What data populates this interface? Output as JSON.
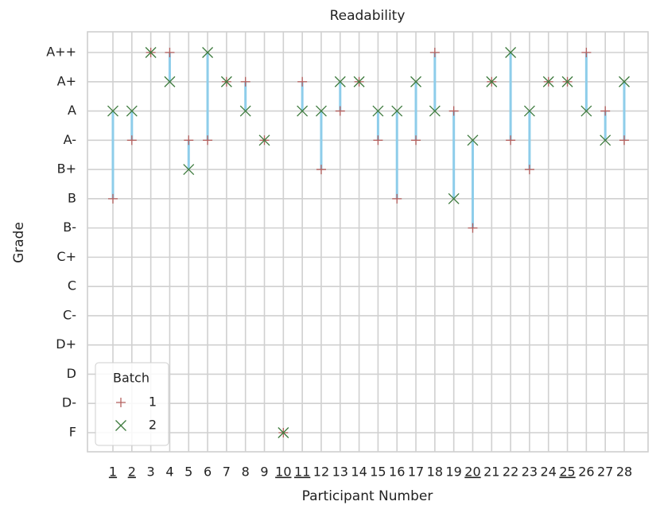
{
  "chart_data": {
    "type": "dumbbell",
    "title": "Readability",
    "x_label": "Participant Number",
    "y_label": "Grade",
    "categories": [
      "1",
      "2",
      "3",
      "4",
      "5",
      "6",
      "7",
      "8",
      "9",
      "10",
      "11",
      "12",
      "13",
      "14",
      "15",
      "16",
      "17",
      "18",
      "19",
      "20",
      "21",
      "22",
      "23",
      "24",
      "25",
      "26",
      "27",
      "28"
    ],
    "underline": [
      true,
      true,
      false,
      false,
      false,
      false,
      false,
      false,
      false,
      true,
      true,
      false,
      false,
      false,
      false,
      false,
      false,
      false,
      false,
      true,
      false,
      false,
      false,
      false,
      true,
      false,
      false,
      false
    ],
    "yticks": [
      "F",
      "D-",
      "D",
      "D+",
      "C-",
      "C",
      "C+",
      "B-",
      "B",
      "B+",
      "A-",
      "A",
      "A+",
      "A++"
    ],
    "grid": true,
    "connector_color": "#8ecdea",
    "legend_title": "Batch",
    "legend_loc": "lower left",
    "series": [
      {
        "name": "1",
        "marker": "plus",
        "color": "#b5615f",
        "values": [
          "B",
          "A-",
          "A++",
          "A++",
          "A-",
          "A-",
          "A+",
          "A+",
          "A-",
          "F",
          "A+",
          "B+",
          "A",
          "A+",
          "A-",
          "B",
          "A-",
          "A++",
          "A",
          "B-",
          "A+",
          "A-",
          "B+",
          "A+",
          "A+",
          "A++",
          "A",
          "A-"
        ]
      },
      {
        "name": "2",
        "marker": "cross",
        "color": "#3d7a3d",
        "values": [
          "A",
          "A",
          "A++",
          "A+",
          "B+",
          "A++",
          "A+",
          "A",
          "A-",
          "F",
          "A",
          "A",
          "A+",
          "A+",
          "A",
          "A",
          "A+",
          "A",
          "B",
          "A-",
          "A+",
          "A++",
          "A",
          "A+",
          "A+",
          "A",
          "A-",
          "A+"
        ]
      }
    ]
  }
}
